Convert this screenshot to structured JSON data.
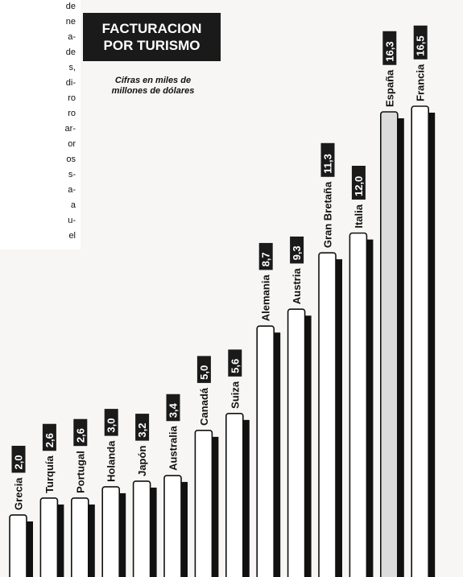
{
  "intro_text": {
    "lines": [
      "de",
      "ne",
      "a-",
      "de",
      "s,",
      "di-",
      "ro",
      "ro",
      "ar-",
      "or",
      "os",
      "s-",
      "a-",
      "a",
      "u-",
      "el"
    ]
  },
  "title": {
    "line1": "FACTURACION",
    "line2": "POR TURISMO"
  },
  "subtitle": {
    "line1": "Cifras en miles de",
    "line2": "millones de dólares"
  },
  "colors": {
    "bar_fill": "#ffffff",
    "bar_shadow": "#111111",
    "label_box": "#1a1a1a",
    "highlight_bar": "#dcdcdc"
  },
  "chart_data": {
    "type": "bar",
    "title": "FACTURACION POR TURISMO",
    "subtitle": "Cifras en miles de millones de dólares",
    "categories": [
      "Grecia",
      "Turquía",
      "Portugal",
      "Holanda",
      "Japón",
      "Australia",
      "Canadá",
      "Suiza",
      "Alemania",
      "Austria",
      "Gran Bretaña",
      "Italia",
      "España",
      "Francia"
    ],
    "value_labels": [
      "2,0",
      "2,6",
      "2,6",
      "3,0",
      "3,2",
      "3,4",
      "5,0",
      "5,6",
      "8,7",
      "9,3",
      "11,3",
      "12,0",
      "16,3",
      "16,5"
    ],
    "values": [
      2.0,
      2.6,
      2.6,
      3.0,
      3.2,
      3.4,
      5.0,
      5.6,
      8.7,
      9.3,
      11.3,
      12.0,
      16.3,
      16.5
    ],
    "highlight": "España",
    "ylim": [
      0,
      16.5
    ]
  }
}
